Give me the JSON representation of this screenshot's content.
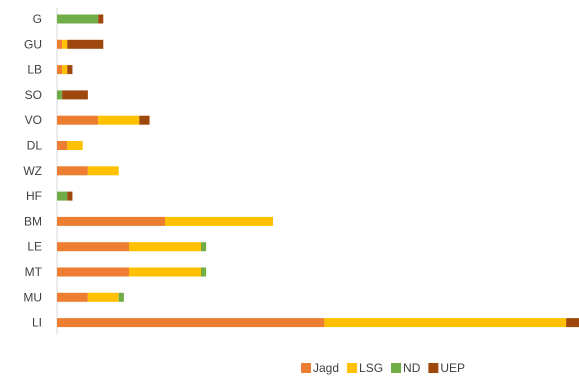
{
  "chart_data": {
    "type": "bar",
    "orientation": "horizontal",
    "stacked": true,
    "categories": [
      "G",
      "GU",
      "LB",
      "SO",
      "VO",
      "DL",
      "WZ",
      "HF",
      "BM",
      "LE",
      "MT",
      "MU",
      "LI"
    ],
    "series": [
      {
        "name": "Jagd",
        "color": "#ED7D31",
        "values": [
          0,
          1,
          1,
          0,
          8,
          2,
          6,
          0,
          21,
          14,
          14,
          6,
          52
        ]
      },
      {
        "name": "LSG",
        "color": "#FFC000",
        "values": [
          0,
          1,
          1,
          0,
          8,
          3,
          6,
          0,
          21,
          14,
          14,
          6,
          47
        ]
      },
      {
        "name": "ND",
        "color": "#70AD47",
        "values": [
          8,
          0,
          0,
          1,
          0,
          0,
          0,
          2,
          0,
          1,
          1,
          1,
          0
        ]
      },
      {
        "name": "UEP",
        "color": "#9E480E",
        "values": [
          1,
          7,
          1,
          5,
          2,
          0,
          0,
          1,
          0,
          0,
          0,
          0,
          2.5
        ]
      }
    ],
    "xlim": [
      0,
      101.5
    ],
    "grid": false,
    "legend_position": "bottom"
  }
}
